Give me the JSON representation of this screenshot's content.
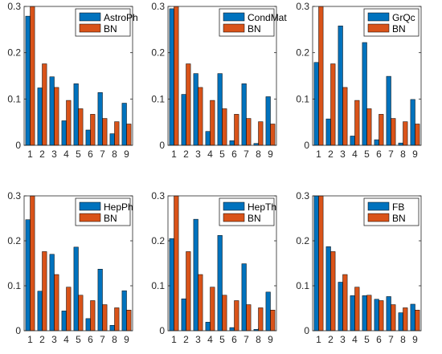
{
  "figure": {
    "colors": {
      "series1": "#0072BD",
      "series2": "#D95319",
      "axis": "#262626"
    }
  },
  "chart_data": [
    {
      "type": "bar",
      "categories": [
        "1",
        "2",
        "3",
        "4",
        "5",
        "6",
        "7",
        "8",
        "9"
      ],
      "ylim": [
        0,
        0.3
      ],
      "yticks": [
        "0",
        "0.1",
        "0.2",
        "0.3"
      ],
      "grid": false,
      "legend_position": "top-right",
      "series": [
        {
          "name": "AstroPh",
          "values": [
            0.279,
            0.124,
            0.148,
            0.053,
            0.133,
            0.033,
            0.114,
            0.025,
            0.091
          ]
        },
        {
          "name": "BN",
          "values": [
            0.301,
            0.176,
            0.125,
            0.097,
            0.079,
            0.067,
            0.058,
            0.051,
            0.046
          ]
        }
      ]
    },
    {
      "type": "bar",
      "categories": [
        "1",
        "2",
        "3",
        "4",
        "5",
        "6",
        "7",
        "8",
        "9"
      ],
      "ylim": [
        0,
        0.3
      ],
      "yticks": [
        "0",
        "0.1",
        "0.2",
        "0.3"
      ],
      "grid": false,
      "legend_position": "top-right",
      "series": [
        {
          "name": "CondMat",
          "values": [
            0.295,
            0.11,
            0.155,
            0.03,
            0.155,
            0.01,
            0.133,
            0.004,
            0.105
          ]
        },
        {
          "name": "BN",
          "values": [
            0.301,
            0.176,
            0.125,
            0.097,
            0.079,
            0.067,
            0.058,
            0.051,
            0.046
          ]
        }
      ]
    },
    {
      "type": "bar",
      "categories": [
        "1",
        "2",
        "3",
        "4",
        "5",
        "6",
        "7",
        "8",
        "9"
      ],
      "ylim": [
        0,
        0.3
      ],
      "yticks": [
        "0",
        "0.1",
        "0.2",
        "0.3"
      ],
      "grid": false,
      "legend_position": "top-right",
      "series": [
        {
          "name": "GrQc",
          "values": [
            0.179,
            0.057,
            0.258,
            0.02,
            0.222,
            0.012,
            0.149,
            0.005,
            0.099
          ]
        },
        {
          "name": "BN",
          "values": [
            0.301,
            0.176,
            0.125,
            0.097,
            0.079,
            0.067,
            0.058,
            0.051,
            0.046
          ]
        }
      ]
    },
    {
      "type": "bar",
      "categories": [
        "1",
        "2",
        "3",
        "4",
        "5",
        "6",
        "7",
        "8",
        "9"
      ],
      "ylim": [
        0,
        0.3
      ],
      "yticks": [
        "0",
        "0.1",
        "0.2",
        "0.3"
      ],
      "grid": false,
      "legend_position": "top-right",
      "series": [
        {
          "name": "HepPh",
          "values": [
            0.247,
            0.088,
            0.17,
            0.044,
            0.186,
            0.027,
            0.137,
            0.012,
            0.089
          ]
        },
        {
          "name": "BN",
          "values": [
            0.301,
            0.176,
            0.125,
            0.097,
            0.079,
            0.067,
            0.058,
            0.051,
            0.046
          ]
        }
      ]
    },
    {
      "type": "bar",
      "categories": [
        "1",
        "2",
        "3",
        "4",
        "5",
        "6",
        "7",
        "8",
        "9"
      ],
      "ylim": [
        0,
        0.3
      ],
      "yticks": [
        "0",
        "0.1",
        "0.2",
        "0.3"
      ],
      "grid": false,
      "legend_position": "top-right",
      "series": [
        {
          "name": "HepTh",
          "values": [
            0.205,
            0.071,
            0.248,
            0.019,
            0.212,
            0.007,
            0.149,
            0.003,
            0.086
          ]
        },
        {
          "name": "BN",
          "values": [
            0.301,
            0.176,
            0.125,
            0.097,
            0.079,
            0.067,
            0.058,
            0.051,
            0.046
          ]
        }
      ]
    },
    {
      "type": "bar",
      "categories": [
        "1",
        "2",
        "3",
        "4",
        "5",
        "6",
        "7",
        "8",
        "9"
      ],
      "ylim": [
        0,
        0.3
      ],
      "yticks": [
        "0",
        "0.1",
        "0.2",
        "0.3"
      ],
      "grid": false,
      "legend_position": "top-right",
      "series": [
        {
          "name": "FB",
          "values": [
            0.301,
            0.187,
            0.108,
            0.078,
            0.078,
            0.07,
            0.076,
            0.04,
            0.059
          ]
        },
        {
          "name": "BN",
          "values": [
            0.301,
            0.176,
            0.125,
            0.097,
            0.079,
            0.067,
            0.058,
            0.051,
            0.046
          ]
        }
      ]
    }
  ]
}
